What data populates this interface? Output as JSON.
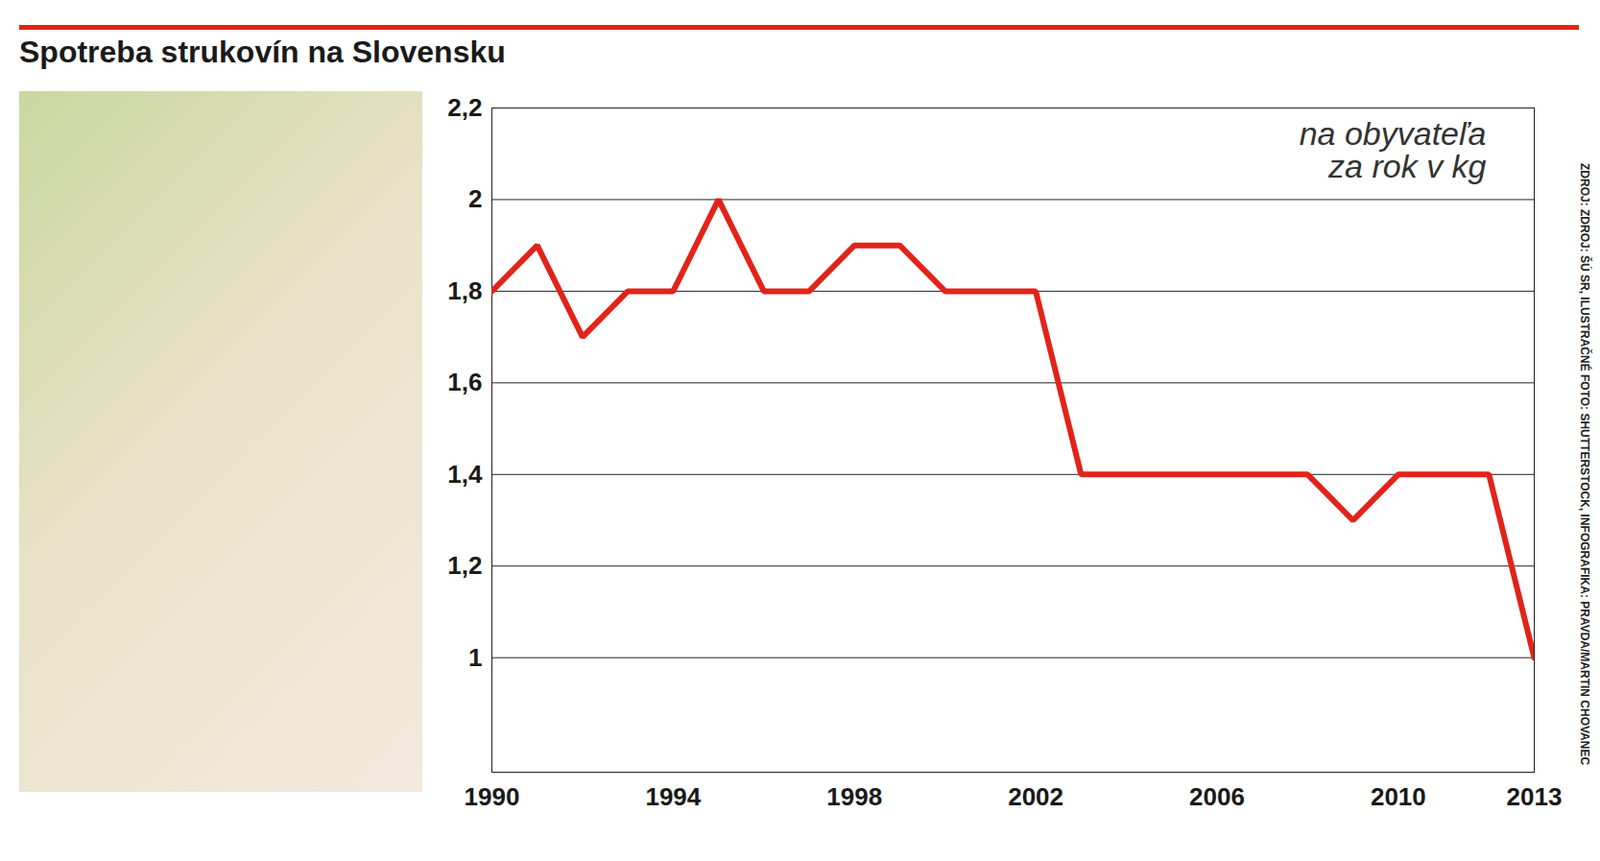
{
  "chart_data": {
    "type": "line",
    "title": "Spotreba strukovín na Slovensku",
    "annotation": "na obyvateľa za rok v kg",
    "source": "ZDROJ: ZDROJ: ŠÚ SR, ILUSTRAČNÉ FOTO: SHUTTERSTOCK, INFOGRAFIKA: PRAVDA/MARTIN CHOVANEC",
    "x": [
      1990,
      1991,
      1992,
      1993,
      1994,
      1995,
      1996,
      1997,
      1998,
      1999,
      2000,
      2001,
      2002,
      2003,
      2004,
      2005,
      2006,
      2007,
      2008,
      2009,
      2010,
      2011,
      2012,
      2013
    ],
    "values": [
      1.8,
      1.9,
      1.7,
      1.8,
      1.8,
      2.0,
      1.8,
      1.8,
      1.9,
      1.9,
      1.8,
      1.8,
      1.8,
      1.4,
      1.4,
      1.4,
      1.4,
      1.4,
      1.4,
      1.3,
      1.4,
      1.4,
      1.4,
      1.0
    ],
    "color": "#e2231a",
    "xlim": [
      1990,
      2013
    ],
    "xticks": [
      1990,
      1994,
      1998,
      2002,
      2006,
      2010,
      2013
    ],
    "ylim": [
      0.75,
      2.2
    ],
    "yticks": [
      1,
      {
        "value": 1.2,
        "label": "1,2"
      },
      {
        "value": 1.4,
        "label": "1,4"
      },
      {
        "value": 1.6,
        "label": "1,6"
      },
      {
        "value": 1.8,
        "label": "1,8"
      },
      2,
      {
        "value": 2.2,
        "label": "2,2"
      }
    ],
    "grid": true
  }
}
